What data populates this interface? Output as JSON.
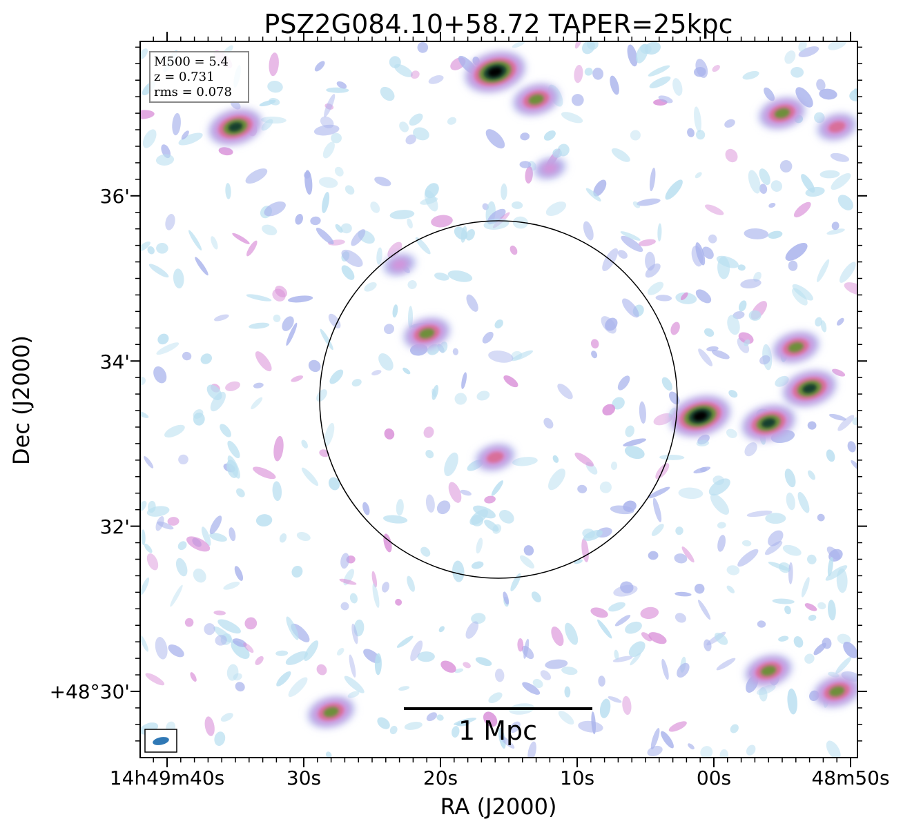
{
  "chart_data": {
    "type": "heatmap",
    "title": "PSZ2G084.10+58.72 TAPER=25kpc",
    "xlabel": "RA (J2000)",
    "ylabel": "Dec (J2000)",
    "x_tick_labels": [
      "14h49m40s",
      "30s",
      "20s",
      "10s",
      "00s",
      "48m50s"
    ],
    "y_tick_labels": [
      "36'",
      "34'",
      "32'",
      "+48°30'"
    ],
    "info_box": [
      "M500 = 5.4",
      "z = 0.731",
      "rms = 0.078"
    ],
    "scalebar_label": "1 Mpc",
    "colormap": [
      "#b9dff0",
      "#a9b3ec",
      "#d98fd8",
      "#d86f9a",
      "#6e8f3a",
      "#16402e",
      "#000000"
    ],
    "grid": false,
    "sources": [
      {
        "ra": "14h49m16s",
        "dec": "+48°37'30\"",
        "level": 6
      },
      {
        "ra": "14h49m35s",
        "dec": "+48°36'50\"",
        "level": 5
      },
      {
        "ra": "14h49m13s",
        "dec": "+48°37'10\"",
        "level": 4
      },
      {
        "ra": "14h49m21s",
        "dec": "+48°34'20\"",
        "level": 4
      },
      {
        "ra": "14h49m01s",
        "dec": "+48°33'20\"",
        "level": 6
      },
      {
        "ra": "14h48m56s",
        "dec": "+48°33'15\"",
        "level": 5
      },
      {
        "ra": "14h48m53s",
        "dec": "+48°33'40\"",
        "level": 5
      },
      {
        "ra": "14h48m54s",
        "dec": "+48°34'10\"",
        "level": 4
      },
      {
        "ra": "14h49m16s",
        "dec": "+48°32'50\"",
        "level": 3
      },
      {
        "ra": "14h48m55s",
        "dec": "+48°37'00\"",
        "level": 4
      },
      {
        "ra": "14h48m51s",
        "dec": "+48°36'50\"",
        "level": 3
      },
      {
        "ra": "14h48m56s",
        "dec": "+48°30'15\"",
        "level": 4
      },
      {
        "ra": "14h48m51s",
        "dec": "+48°30'00\"",
        "level": 4
      },
      {
        "ra": "14h49m28s",
        "dec": "+48°29'45\"",
        "level": 4
      },
      {
        "ra": "14h49m12s",
        "dec": "+48°36'20\"",
        "level": 2
      },
      {
        "ra": "14h49m23s",
        "dec": "+48°35'10\"",
        "level": 2
      }
    ]
  }
}
